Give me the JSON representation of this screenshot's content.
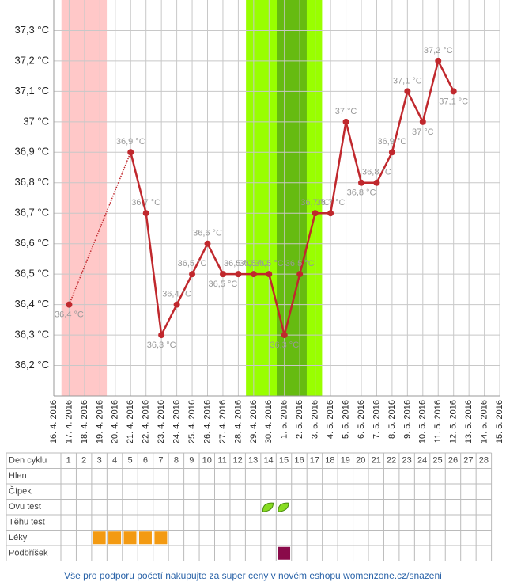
{
  "chart_data": {
    "type": "line",
    "categories": [
      "16. 4. 2016",
      "17. 4. 2016",
      "18. 4. 2016",
      "19. 4. 2016",
      "20. 4. 2016",
      "21. 4. 2016",
      "22. 4. 2016",
      "23. 4. 2016",
      "24. 4. 2016",
      "25. 4. 2016",
      "26. 4. 2016",
      "27. 4. 2016",
      "28. 4. 2016",
      "29. 4. 2016",
      "30. 4. 2016",
      "1. 5. 2016",
      "2. 5. 2016",
      "3. 5. 2016",
      "4. 5. 2016",
      "5. 5. 2016",
      "6. 5. 2016",
      "7. 5. 2016",
      "8. 5. 2016",
      "9. 5. 2016",
      "10. 5. 2016",
      "11. 5. 2016",
      "12. 5. 2016",
      "13. 5. 2016",
      "14. 5. 2016",
      "15. 5. 2016"
    ],
    "series": [
      {
        "color": "#c0282d",
        "values": [
          null,
          36.4,
          null,
          null,
          null,
          36.9,
          36.7,
          36.3,
          36.4,
          36.5,
          36.6,
          36.5,
          36.5,
          36.5,
          36.5,
          36.3,
          36.5,
          36.7,
          36.7,
          37.0,
          36.8,
          36.8,
          36.9,
          37.1,
          37.0,
          37.2,
          37.1,
          null,
          null,
          null
        ],
        "value_labels": [
          null,
          "36,4 °C",
          null,
          null,
          null,
          "36,9 °C",
          "36,7 °C",
          "36,3 °C",
          "36,4 °C",
          "36,5 °C",
          "36,6 °C",
          "36,5 °C",
          "36,5 °C",
          "36,5 °C",
          "36,5 °C",
          "36,3 °C",
          "36,5 °C",
          "36,7 °C",
          "36,7 °C",
          "37 °C",
          "36,8 °C",
          "36,8 °C",
          "36,9 °C",
          "37,1 °C",
          "37 °C",
          "37,2 °C",
          "37,1 °C",
          null,
          null,
          null
        ]
      }
    ],
    "ylim": [
      36.1,
      37.4
    ],
    "yticks": [
      {
        "value": 36.2,
        "label": "36,2 °C"
      },
      {
        "value": 36.3,
        "label": "36,3 °C"
      },
      {
        "value": 36.4,
        "label": "36,4 °C"
      },
      {
        "value": 36.5,
        "label": "36,5 °C"
      },
      {
        "value": 36.6,
        "label": "36,6 °C"
      },
      {
        "value": 36.7,
        "label": "36,7 °C"
      },
      {
        "value": 36.8,
        "label": "36,8 °C"
      },
      {
        "value": 36.9,
        "label": "36,9 °C"
      },
      {
        "value": 37.0,
        "label": "37 °C"
      },
      {
        "value": 37.1,
        "label": "37,1 °C"
      },
      {
        "value": 37.2,
        "label": "37,2 °C"
      },
      {
        "value": 37.3,
        "label": "37,3 °C"
      }
    ],
    "grid": true
  },
  "table": {
    "header": "Den cyklu",
    "days": [
      1,
      2,
      3,
      4,
      5,
      6,
      7,
      8,
      9,
      10,
      11,
      12,
      13,
      14,
      15,
      16,
      17,
      18,
      19,
      20,
      21,
      22,
      23,
      24,
      25,
      26,
      27,
      28
    ],
    "rows": [
      {
        "label": "Hlen",
        "marks": []
      },
      {
        "label": "Čípek",
        "marks": []
      },
      {
        "label": "Ovu test",
        "marks": [
          14,
          15
        ]
      },
      {
        "label": "Těhu test",
        "marks": []
      },
      {
        "label": "Léky",
        "marks": [
          3,
          4,
          5,
          6,
          7
        ]
      },
      {
        "label": "Podbříšek",
        "marks": [
          15
        ]
      }
    ]
  },
  "footer": "Vše pro podporu početí nakupujte za super ceny v novém eshopu womenzone.cz/snazeni"
}
